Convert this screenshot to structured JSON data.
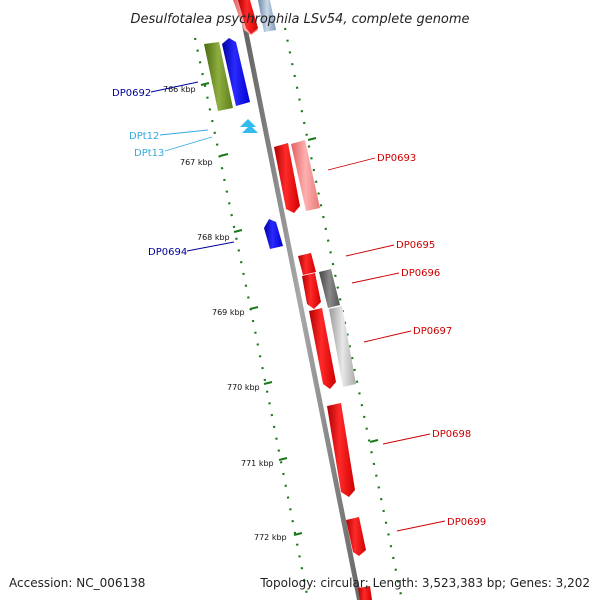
{
  "title": "Desulfotalea psychrophila LSv54, complete genome",
  "footer": {
    "accession": "Accession: NC_006138",
    "summary": "Topology: circular; Length: 3,523,383 bp; Genes: 3,202"
  },
  "colors": {
    "backbone": "#808080",
    "ruler": "#1a7a1a",
    "cds_red": "#ff0000",
    "cds_blue": "#0000ff",
    "cds_olive": "#6b8e23",
    "rna_cyan": "#33bbee",
    "label_red": "#cc0000",
    "label_blue": "#000099",
    "label_cyan": "#33aadd"
  },
  "ticks": [
    {
      "label": "766 kbp"
    },
    {
      "label": "767 kbp"
    },
    {
      "label": "768 kbp"
    },
    {
      "label": "769 kbp"
    },
    {
      "label": "770 kbp"
    },
    {
      "label": "771 kbp"
    },
    {
      "label": "772 kbp"
    }
  ],
  "genes": [
    {
      "label": "DP0692"
    },
    {
      "label": "DPt12"
    },
    {
      "label": "DPt13"
    },
    {
      "label": "DP0693"
    },
    {
      "label": "DP0694"
    },
    {
      "label": "DP0695"
    },
    {
      "label": "DP0696"
    },
    {
      "label": "DP0697"
    },
    {
      "label": "DP0698"
    },
    {
      "label": "DP0699"
    }
  ]
}
